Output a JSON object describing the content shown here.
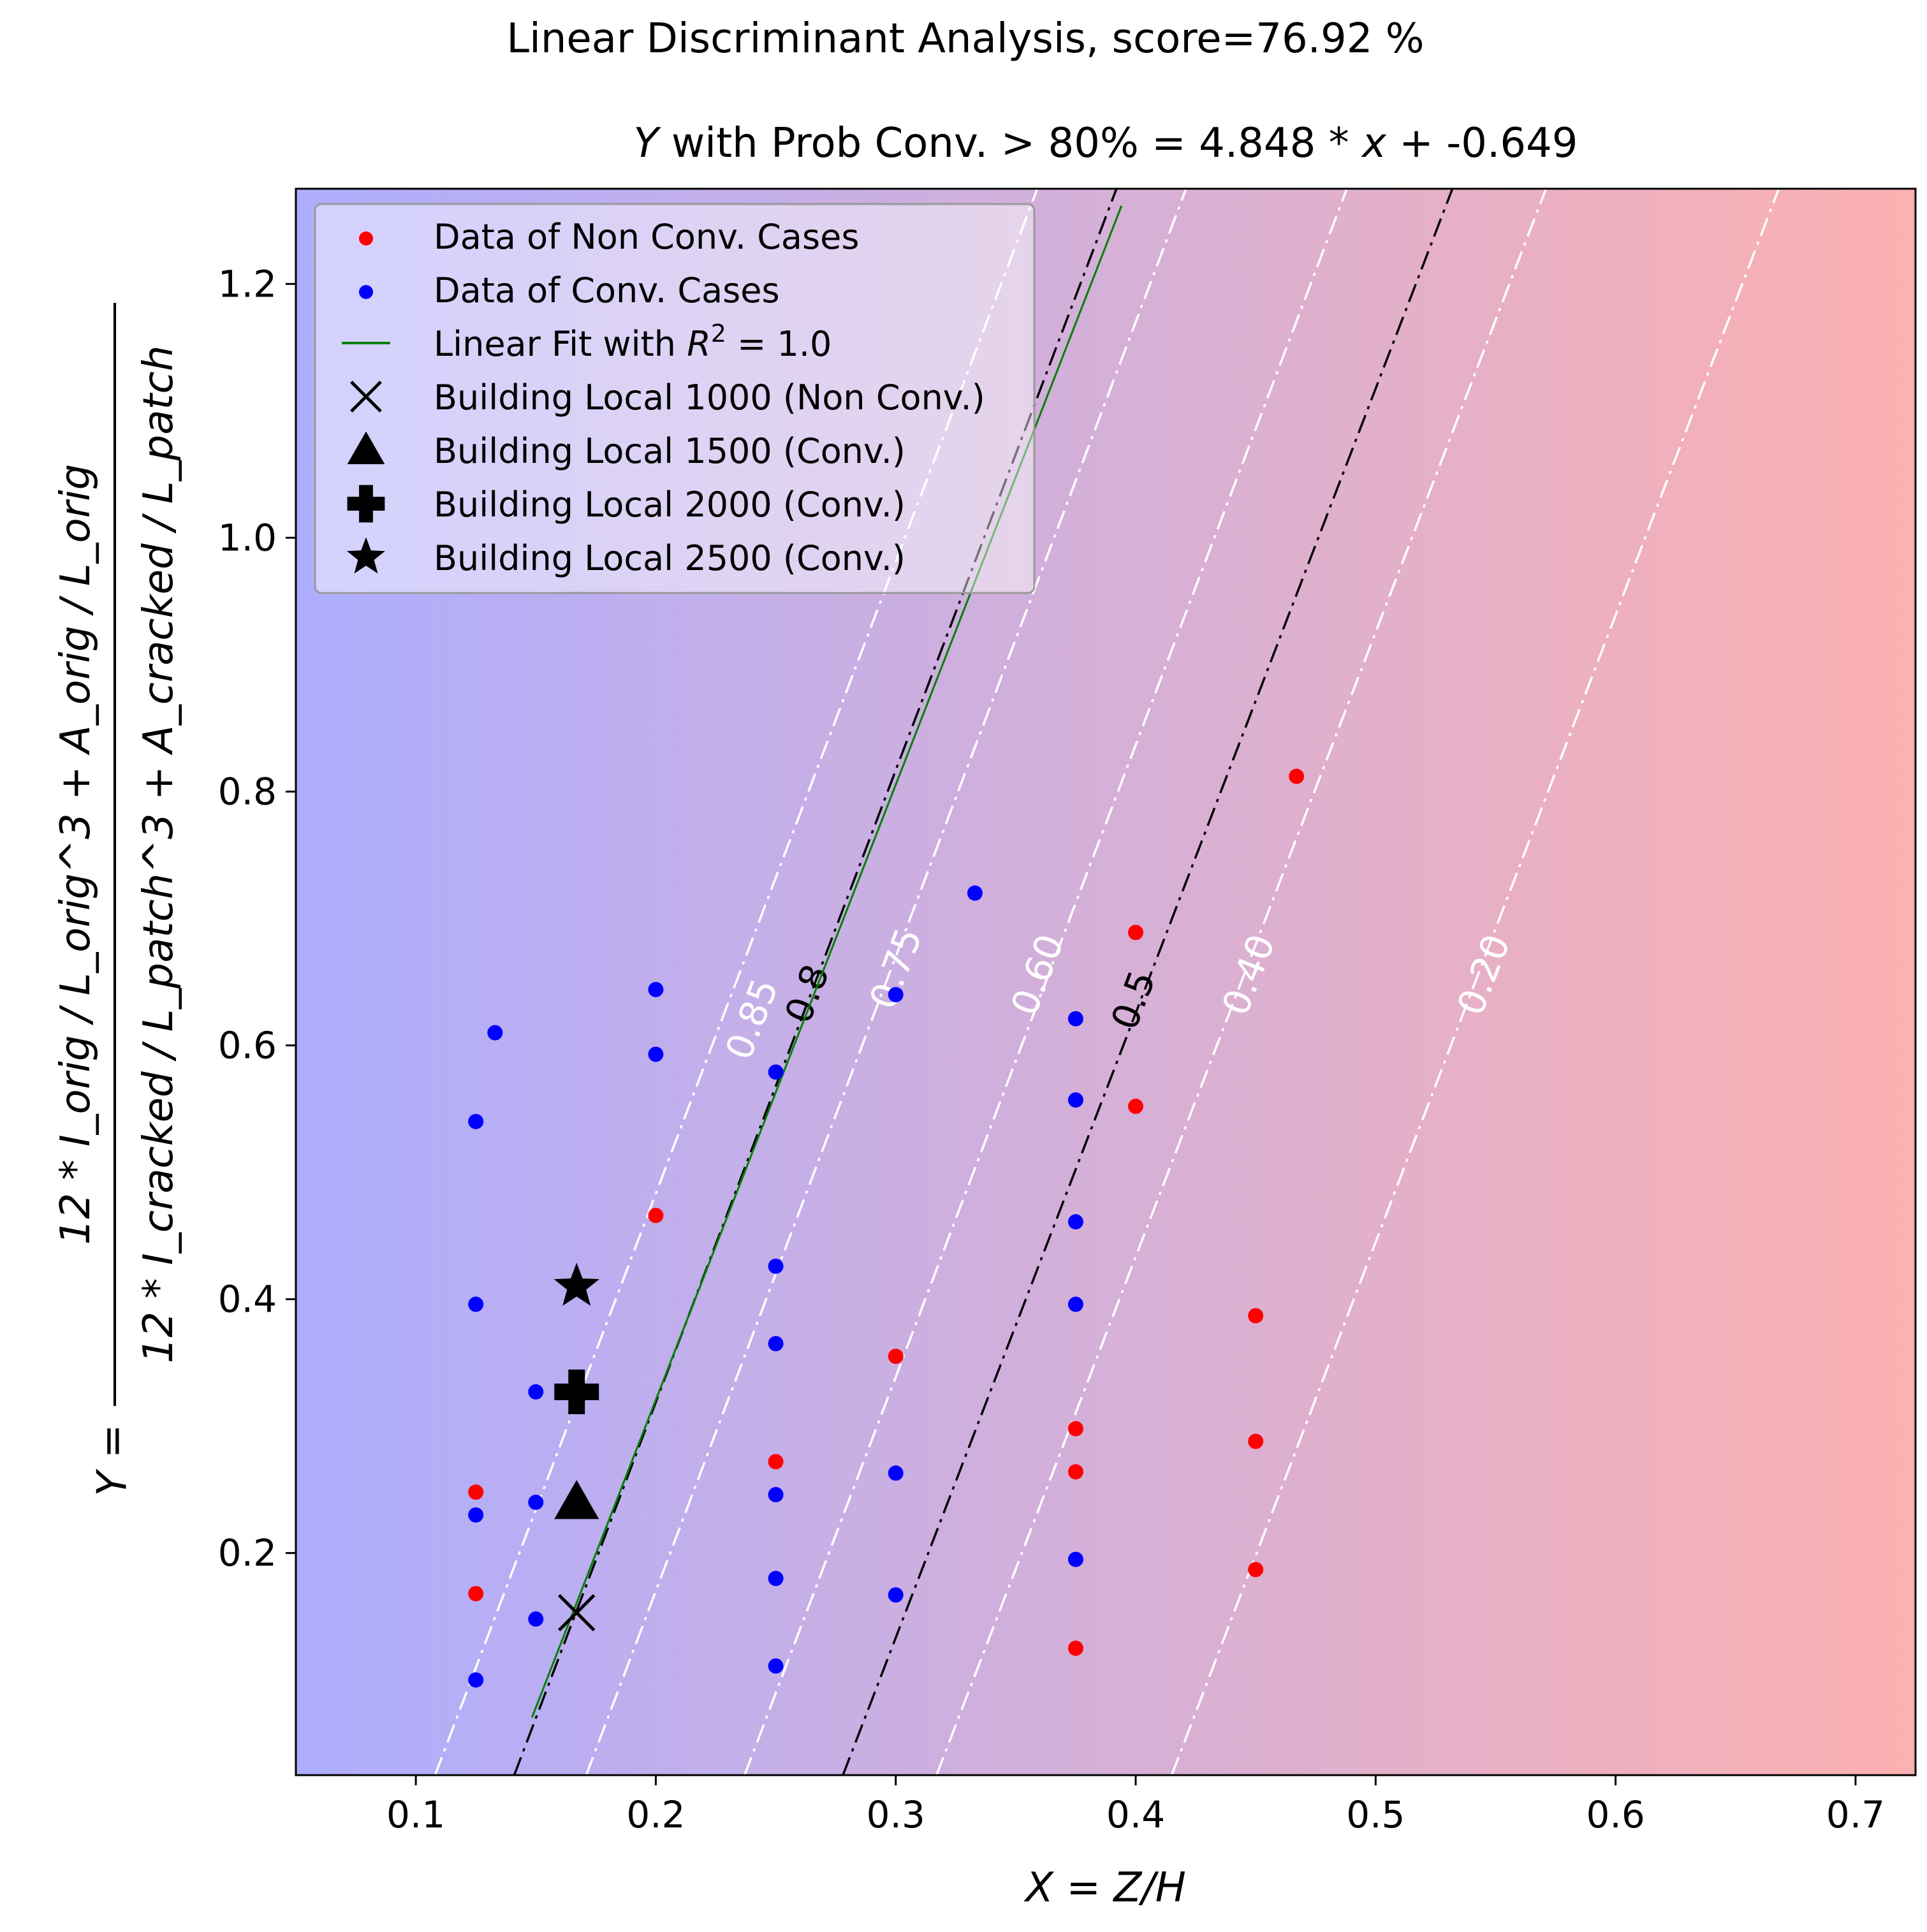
{
  "chart_data": {
    "type": "scatter",
    "suptitle": "Linear Discriminant Analysis, score=76.92 %",
    "title": {
      "prefix": "Y",
      "middle": " with Prob Conv. > 80% = 4.848 * ",
      "var": "x",
      "suffix": " + -0.649"
    },
    "xlabel": {
      "text": "X = Z/H"
    },
    "ylabel": {
      "lhs": "Y =",
      "numerator": "12 * I_orig / L_orig^3 + A_orig / L_orig",
      "denominator": "12 * I_cracked / L_patch^3 + A_cracked / L_patch"
    },
    "xlim": [
      0.05,
      0.725
    ],
    "ylim": [
      0.025,
      1.275
    ],
    "xticks": [
      0.1,
      0.2,
      0.3,
      0.4,
      0.5,
      0.6,
      0.7
    ],
    "xtick_labels": [
      "0.1",
      "0.2",
      "0.3",
      "0.4",
      "0.5",
      "0.6",
      "0.7"
    ],
    "yticks": [
      0.2,
      0.4,
      0.6,
      0.8,
      1.0,
      1.2
    ],
    "ytick_labels": [
      "0.2",
      "0.4",
      "0.6",
      "0.8",
      "1.0",
      "1.2"
    ],
    "background_gradient": {
      "left_color": "#aeaefe",
      "right_color": "#fcb1b1"
    },
    "colors": {
      "non_conv": "#ff0000",
      "conv": "#0000ff",
      "fit": "#008000",
      "contour_white": "#ffffff",
      "contour_black": "#000000",
      "marker": "#000000"
    },
    "legend": {
      "position": "upper-left",
      "entries": [
        {
          "key": "non_conv",
          "label": "Data of Non Conv. Cases"
        },
        {
          "key": "conv",
          "label": "Data of Conv. Cases"
        },
        {
          "key": "fit",
          "label": "Linear Fit with ",
          "label_math": "R",
          "label_sup": "2",
          "label_tail": " = 1.0"
        },
        {
          "key": "b1000",
          "label": "Building Local 1000 (Non Conv.)"
        },
        {
          "key": "b1500",
          "label": "Building Local 1500 (Conv.)"
        },
        {
          "key": "b2000",
          "label": "Building Local 2000 (Conv.)"
        },
        {
          "key": "b2500",
          "label": "Building Local 2500 (Conv.)"
        }
      ]
    },
    "non_conv_points": [
      [
        0.125,
        0.248
      ],
      [
        0.125,
        0.168
      ],
      [
        0.2,
        0.466
      ],
      [
        0.25,
        0.272
      ],
      [
        0.3,
        0.355
      ],
      [
        0.375,
        0.298
      ],
      [
        0.375,
        0.264
      ],
      [
        0.375,
        0.125
      ],
      [
        0.4,
        0.689
      ],
      [
        0.4,
        0.552
      ],
      [
        0.45,
        0.387
      ],
      [
        0.45,
        0.288
      ],
      [
        0.45,
        0.187
      ],
      [
        0.467,
        0.812
      ]
    ],
    "conv_points": [
      [
        0.125,
        0.54
      ],
      [
        0.125,
        0.396
      ],
      [
        0.125,
        0.23
      ],
      [
        0.125,
        0.1
      ],
      [
        0.133,
        0.61
      ],
      [
        0.15,
        0.327
      ],
      [
        0.15,
        0.24
      ],
      [
        0.15,
        0.148
      ],
      [
        0.2,
        0.644
      ],
      [
        0.2,
        0.593
      ],
      [
        0.25,
        0.579
      ],
      [
        0.25,
        0.426
      ],
      [
        0.25,
        0.365
      ],
      [
        0.25,
        0.246
      ],
      [
        0.25,
        0.18
      ],
      [
        0.25,
        0.111
      ],
      [
        0.3,
        0.64
      ],
      [
        0.3,
        0.263
      ],
      [
        0.3,
        0.167
      ],
      [
        0.333,
        0.72
      ],
      [
        0.375,
        0.621
      ],
      [
        0.375,
        0.557
      ],
      [
        0.375,
        0.461
      ],
      [
        0.375,
        0.396
      ],
      [
        0.375,
        0.195
      ]
    ],
    "buildings": [
      {
        "key": "b1000",
        "marker": "x",
        "x": 0.167,
        "y": 0.153
      },
      {
        "key": "b1500",
        "marker": "triangle",
        "x": 0.167,
        "y": 0.24
      },
      {
        "key": "b2000",
        "marker": "plus",
        "x": 0.167,
        "y": 0.327
      },
      {
        "key": "b2500",
        "marker": "star",
        "x": 0.167,
        "y": 0.41
      }
    ],
    "fit_line": {
      "slope": 4.848,
      "intercept": -0.649,
      "x_start": 0.1484,
      "x_end": 0.3941
    },
    "contours": [
      {
        "label": "0.85",
        "color": "white",
        "x_bottom": 0.108,
        "x_top": 0.359,
        "label_at": [
          0.241,
          0.62
        ]
      },
      {
        "label": "0.8",
        "color": "black",
        "x_bottom": 0.141,
        "x_top": 0.392,
        "label_at": [
          0.264,
          0.64
        ]
      },
      {
        "label": "0.75",
        "color": "white",
        "x_bottom": 0.171,
        "x_top": 0.421,
        "label_at": [
          0.301,
          0.66
        ]
      },
      {
        "label": "0.60",
        "color": "white",
        "x_bottom": 0.237,
        "x_top": 0.488,
        "label_at": [
          0.36,
          0.655
        ]
      },
      {
        "label": "0.5",
        "color": "black",
        "x_bottom": 0.278,
        "x_top": 0.532,
        "label_at": [
          0.4,
          0.635
        ]
      },
      {
        "label": "0.40",
        "color": "white",
        "x_bottom": 0.317,
        "x_top": 0.571,
        "label_at": [
          0.448,
          0.655
        ]
      },
      {
        "label": "0.20",
        "color": "white",
        "x_bottom": 0.415,
        "x_top": 0.668,
        "label_at": [
          0.546,
          0.655
        ]
      }
    ]
  }
}
